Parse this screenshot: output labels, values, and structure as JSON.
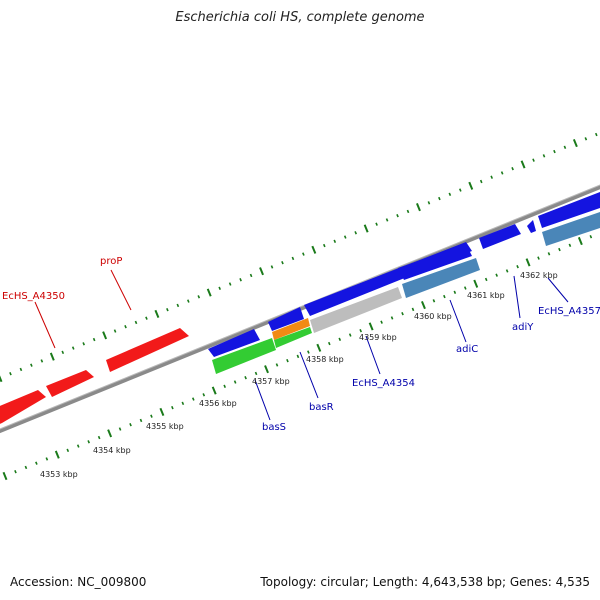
{
  "title": "Escherichia coli HS, complete genome",
  "footer": {
    "accession": "Accession: NC_009800",
    "summary": "Topology: circular; Length: 4,643,538 bp; Genes: 4,535"
  },
  "colors": {
    "backbone": "#8a8a8a",
    "tick": "#1a7a1a",
    "red_gene": "#f21a1a",
    "blue_gene": "#1414e0",
    "green_gene": "#33cc33",
    "orange_gene": "#f28a14",
    "gray_gene": "#bdbdbd",
    "steel_gene": "#4a86b8",
    "red_label": "#cc0000",
    "blue_label": "#0000aa"
  },
  "scale_labels": [
    {
      "text": "4353 kbp",
      "kbp": 4353
    },
    {
      "text": "4354 kbp",
      "kbp": 4354
    },
    {
      "text": "4355 kbp",
      "kbp": 4355
    },
    {
      "text": "4356 kbp",
      "kbp": 4356
    },
    {
      "text": "4357 kbp",
      "kbp": 4357
    },
    {
      "text": "4358 kbp",
      "kbp": 4358
    },
    {
      "text": "4359 kbp",
      "kbp": 4359
    },
    {
      "text": "4360 kbp",
      "kbp": 4360
    },
    {
      "text": "4361 kbp",
      "kbp": 4361
    },
    {
      "text": "4362 kbp",
      "kbp": 4362
    }
  ],
  "gene_labels": [
    {
      "text": "EcHS_A4350",
      "color": "red"
    },
    {
      "text": "proP",
      "color": "red"
    },
    {
      "text": "basS",
      "color": "blue"
    },
    {
      "text": "basR",
      "color": "blue"
    },
    {
      "text": "EcHS_A4354",
      "color": "blue"
    },
    {
      "text": "adiC",
      "color": "blue"
    },
    {
      "text": "adiY",
      "color": "blue"
    },
    {
      "text": "EcHS_A4357",
      "color": "blue"
    }
  ]
}
